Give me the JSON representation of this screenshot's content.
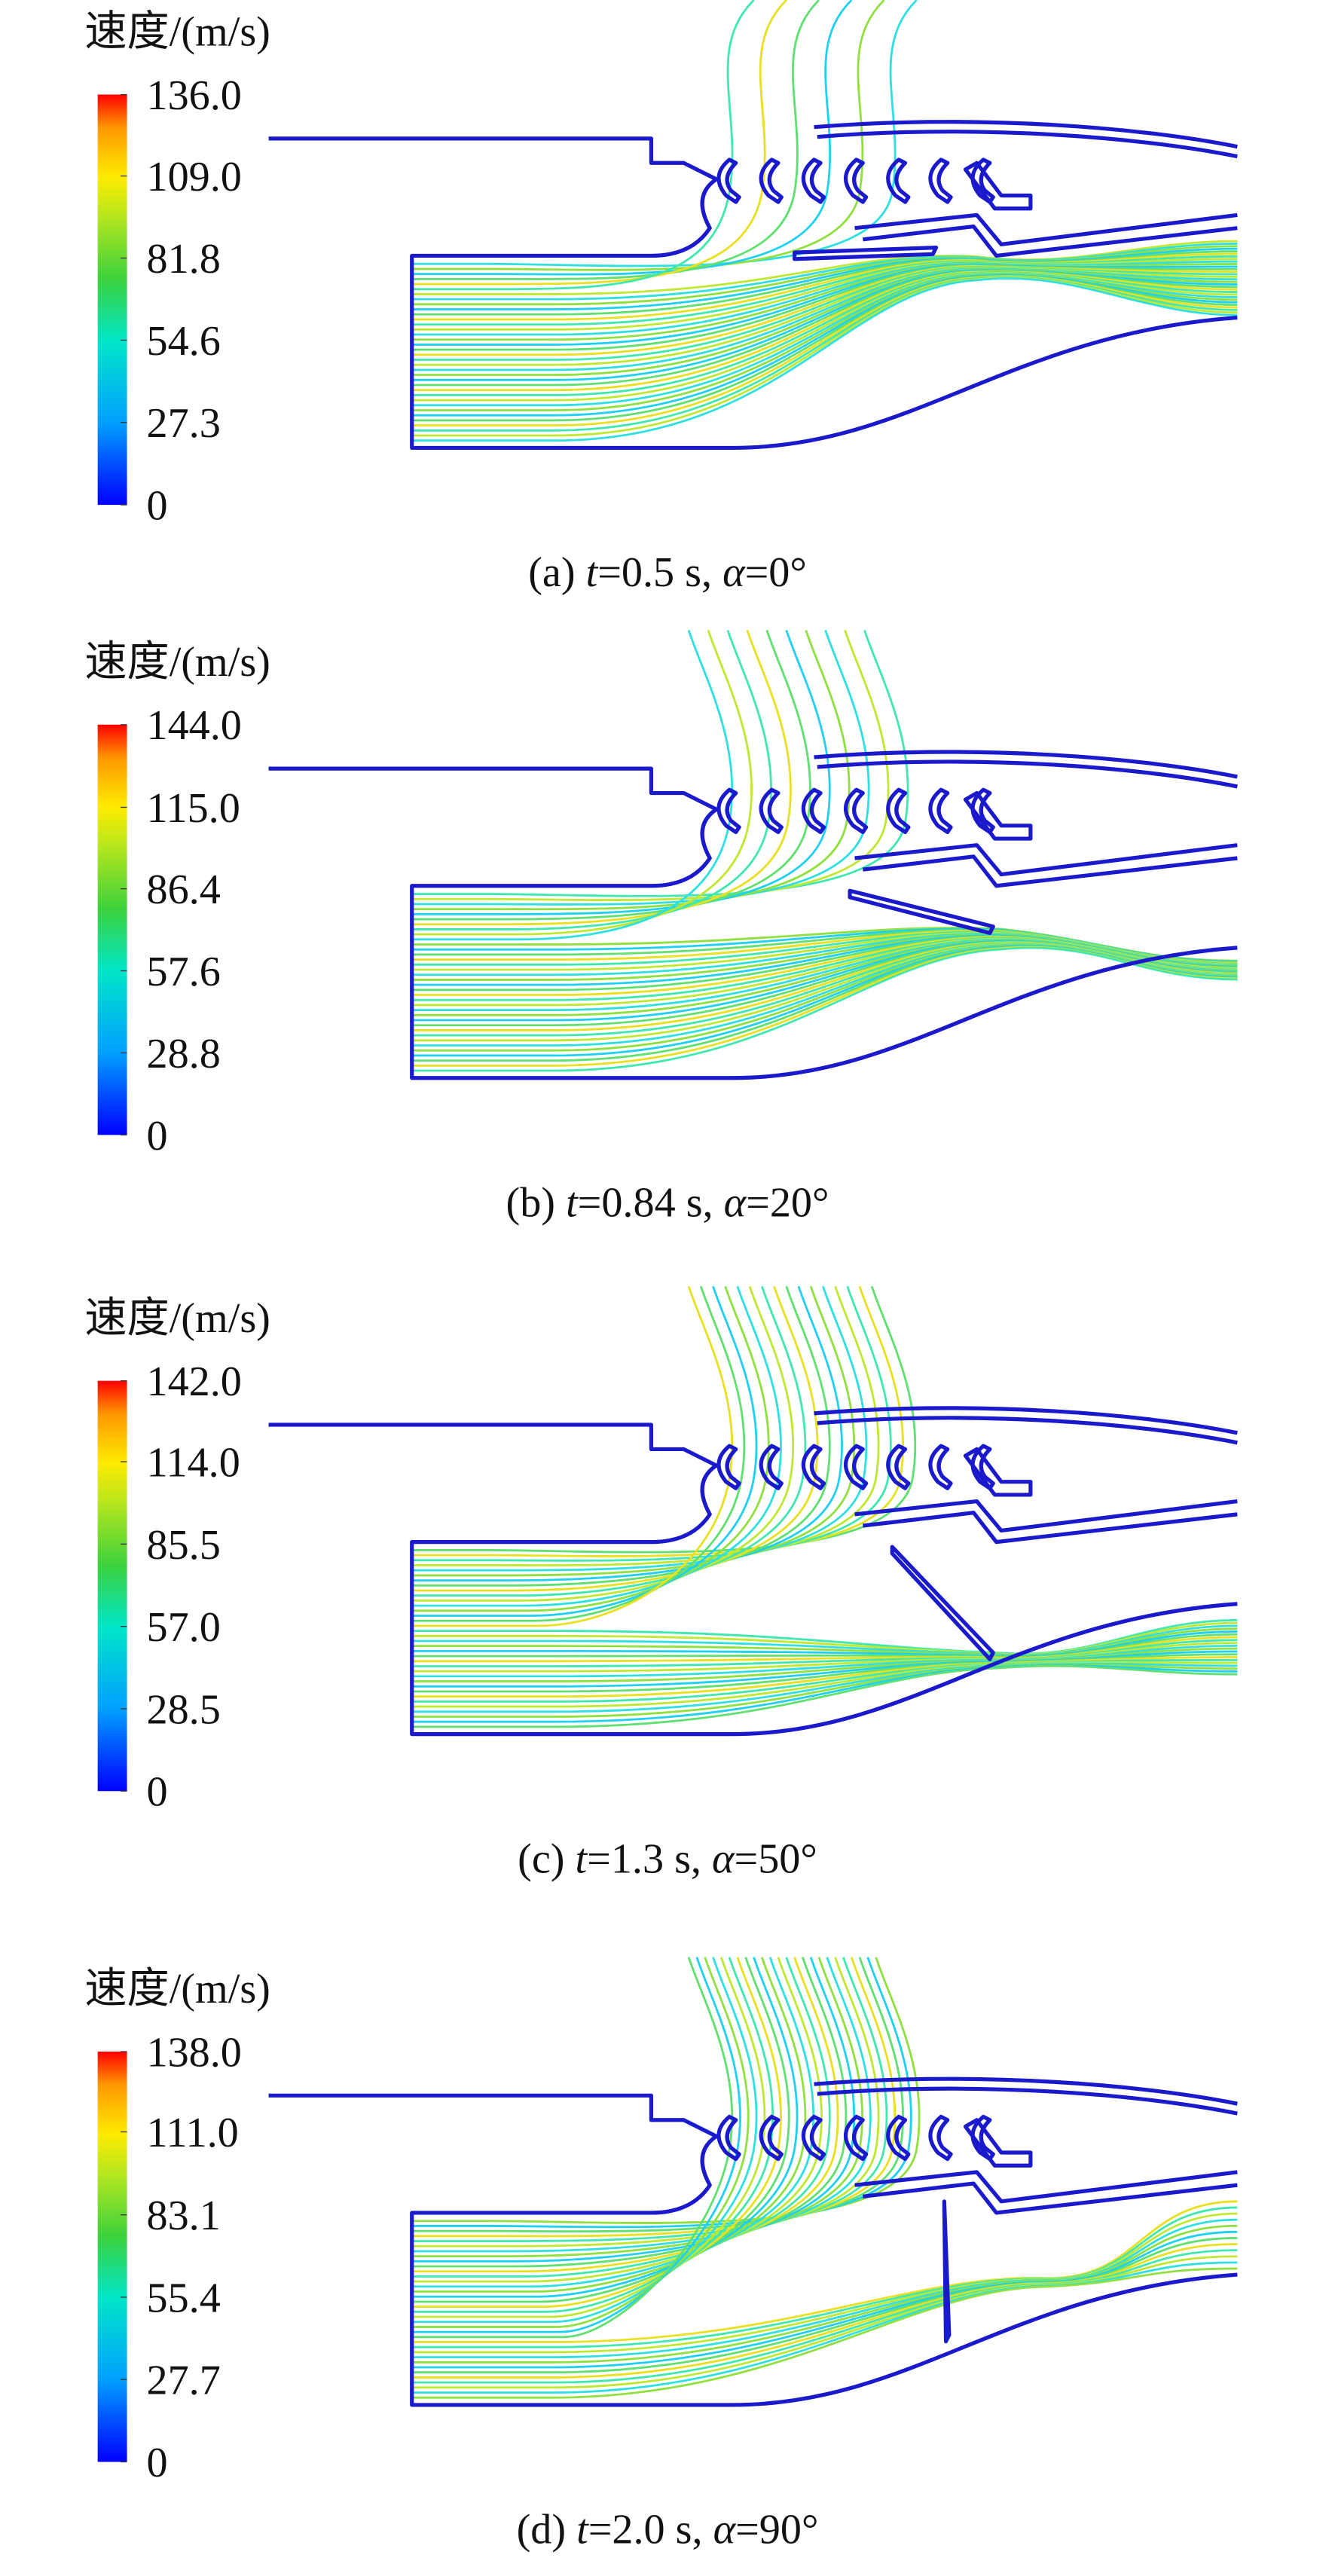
{
  "panels": [
    {
      "colorbar": {
        "title": "速度/(m/s)",
        "clim": [
          0,
          136
        ],
        "ticks": [
          {
            "value": 136,
            "label": "136.0"
          },
          {
            "value": 109,
            "label": "109.0"
          },
          81.8,
          54.6,
          27.3,
          0
        ]
      },
      "caption": [
        "(a) ",
        "t",
        "=0.5 s, ",
        "α",
        "=0°"
      ]
    },
    {
      "colorbar": {
        "title": "速度/(m/s)",
        "clim": [
          0,
          144
        ],
        "ticks": [
          {
            "value": 144,
            "label": "144.0"
          },
          {
            "value": 115,
            "label": "115.0"
          },
          86.4,
          57.6,
          28.8,
          0
        ]
      },
      "caption": [
        "(b) ",
        "t",
        "=0.84 s, ",
        "α",
        "=20°"
      ]
    },
    {
      "colorbar": {
        "title": "速度/(m/s)",
        "clim": [
          0,
          142
        ],
        "ticks": [
          {
            "value": 142,
            "label": "142.0"
          },
          {
            "value": 114,
            "label": "114.0"
          },
          85.5,
          {
            "value": 57,
            "label": "57.0"
          },
          28.5,
          0
        ]
      },
      "caption": [
        "(c) ",
        "t",
        "=1.3 s, ",
        "α",
        "=50°"
      ]
    },
    {
      "colorbar": {
        "title": "速度/(m/s)",
        "clim": [
          0,
          138
        ],
        "ticks": [
          {
            "value": 138,
            "label": "138.0"
          },
          {
            "value": 111,
            "label": "111.0"
          },
          83.1,
          55.4,
          27.7,
          0
        ]
      },
      "caption": [
        "(d) ",
        "t",
        "=2.0 s, ",
        "α",
        "=90°"
      ]
    }
  ]
}
